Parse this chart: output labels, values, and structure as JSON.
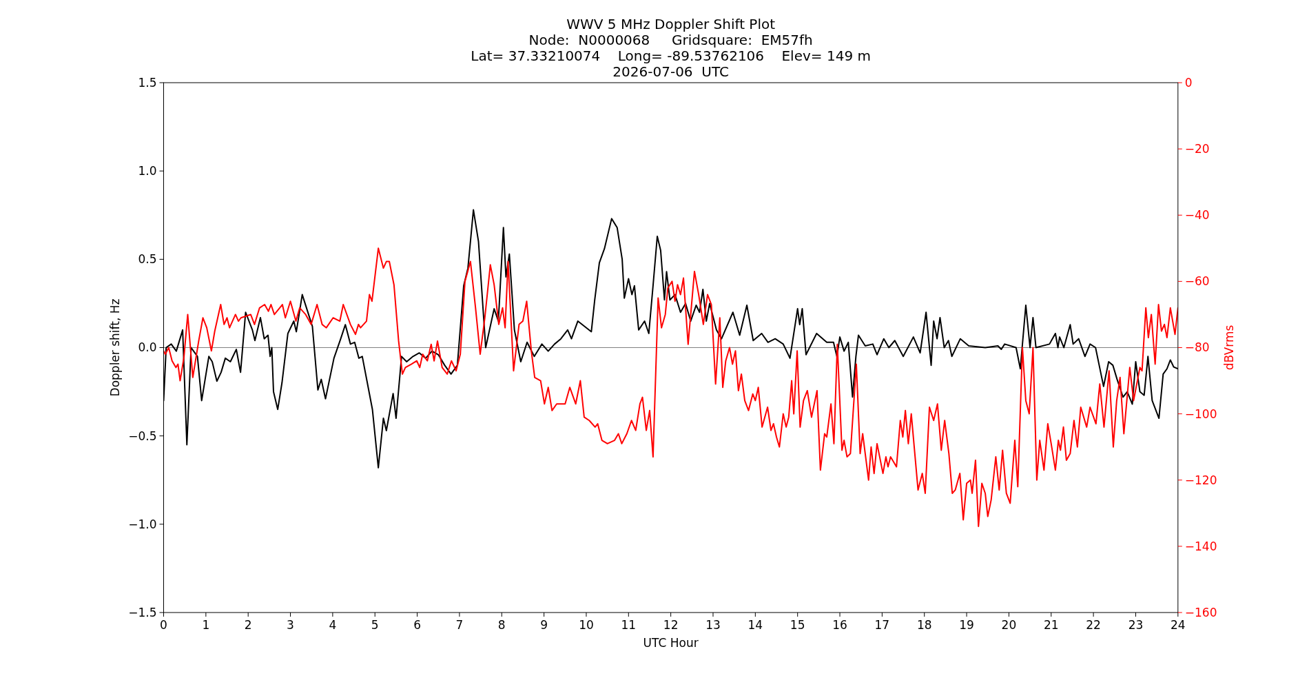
{
  "chart_data": {
    "type": "line",
    "title": "WWV 5 MHz Doppler Shift Plot",
    "subtitle": "Node:  N0000068     Gridsquare:  EM57fh\nLat= 37.33210074    Long= -89.53762106    Elev= 149 m\n2026-07-06  UTC",
    "xlabel": "UTC Hour",
    "ylabel": "Doppler shift, Hz",
    "y2label": "dBVrms",
    "xlim": [
      0,
      24
    ],
    "xticks": [
      0,
      1,
      2,
      3,
      4,
      5,
      6,
      7,
      8,
      9,
      10,
      11,
      12,
      13,
      14,
      15,
      16,
      17,
      18,
      19,
      20,
      21,
      22,
      23,
      24
    ],
    "ylim": [
      -1.5,
      1.5
    ],
    "yticks": [
      {
        "value": -1.5,
        "label": "−1.5"
      },
      {
        "value": -1,
        "label": "−1.0"
      },
      {
        "value": -0.5,
        "label": "−0.5"
      },
      {
        "value": 0,
        "label": "0.0"
      },
      {
        "value": 0.5,
        "label": "0.5"
      },
      {
        "value": 1,
        "label": "1.0"
      },
      {
        "value": 1.5,
        "label": "1.5"
      }
    ],
    "y2lim": [
      -160,
      0
    ],
    "y2ticks": [
      {
        "value": -160,
        "label": "−160"
      },
      {
        "value": -140,
        "label": "−140"
      },
      {
        "value": -120,
        "label": "−120"
      },
      {
        "value": -100,
        "label": "−100"
      },
      {
        "value": -80,
        "label": "−80"
      },
      {
        "value": -60,
        "label": "−60"
      },
      {
        "value": -40,
        "label": "−40"
      },
      {
        "value": -20,
        "label": "−20"
      },
      {
        "value": 0,
        "label": "0"
      }
    ],
    "ref_lines": [
      {
        "axis": "y",
        "value": 0,
        "color": "#808080"
      }
    ],
    "series": [
      {
        "color": "#000000",
        "x": [
          0,
          0.06,
          0.18,
          0.3,
          0.45,
          0.55,
          0.65,
          0.8,
          0.9,
          1.07,
          1.15,
          1.26,
          1.36,
          1.46,
          1.58,
          1.72,
          1.82,
          1.94,
          2.1,
          2.16,
          2.29,
          2.38,
          2.47,
          2.52,
          2.56,
          2.6,
          2.7,
          2.8,
          2.94,
          3.08,
          3.14,
          3.28,
          3.44,
          3.52,
          3.65,
          3.73,
          3.83,
          4.03,
          4.19,
          4.3,
          4.42,
          4.52,
          4.62,
          4.7,
          4.82,
          4.94,
          5.08,
          5.2,
          5.27,
          5.43,
          5.5,
          5.63,
          5.75,
          5.9,
          6.05,
          6.2,
          6.35,
          6.5,
          6.65,
          6.8,
          6.95,
          7.1,
          7.2,
          7.33,
          7.45,
          7.62,
          7.82,
          7.92,
          8.04,
          8.1,
          8.18,
          8.3,
          8.45,
          8.6,
          8.77,
          8.95,
          9.1,
          9.25,
          9.4,
          9.56,
          9.65,
          9.8,
          9.96,
          10.12,
          10.2,
          10.31,
          10.43,
          10.6,
          10.73,
          10.85,
          10.9,
          11.0,
          11.08,
          11.14,
          11.24,
          11.38,
          11.48,
          11.58,
          11.68,
          11.76,
          11.85,
          11.9,
          11.98,
          12.1,
          12.23,
          12.35,
          12.47,
          12.6,
          12.68,
          12.76,
          12.84,
          12.92,
          13.08,
          13.2,
          13.47,
          13.63,
          13.8,
          13.95,
          14.15,
          14.3,
          14.47,
          14.66,
          14.82,
          15.0,
          15.05,
          15.11,
          15.2,
          15.45,
          15.69,
          15.85,
          15.93,
          16.0,
          16.1,
          16.2,
          16.3,
          16.38,
          16.44,
          16.6,
          16.78,
          16.88,
          17.04,
          17.16,
          17.3,
          17.5,
          17.74,
          17.9,
          18.04,
          18.16,
          18.22,
          18.3,
          18.37,
          18.47,
          18.57,
          18.65,
          18.85,
          19.05,
          19.44,
          19.74,
          19.82,
          19.9,
          20.17,
          20.27,
          20.4,
          20.5,
          20.57,
          20.64,
          20.96,
          21.1,
          21.16,
          21.2,
          21.3,
          21.45,
          21.52,
          21.65,
          21.8,
          21.92,
          22.05,
          22.24,
          22.36,
          22.46,
          22.56,
          22.7,
          22.8,
          22.92,
          23.0,
          23.1,
          23.2,
          23.29,
          23.39,
          23.55,
          23.65,
          23.74,
          23.82,
          23.9,
          24
        ],
        "values": [
          -0.3,
          0.0,
          0.02,
          -0.02,
          0.1,
          -0.55,
          0.0,
          -0.05,
          -0.3,
          -0.05,
          -0.08,
          -0.19,
          -0.14,
          -0.06,
          -0.08,
          -0.01,
          -0.14,
          0.2,
          0.1,
          0.04,
          0.17,
          0.05,
          0.07,
          -0.05,
          0.0,
          -0.25,
          -0.35,
          -0.2,
          0.08,
          0.15,
          0.09,
          0.3,
          0.18,
          0.12,
          -0.24,
          -0.18,
          -0.29,
          -0.06,
          0.05,
          0.13,
          0.02,
          0.03,
          -0.06,
          -0.05,
          -0.2,
          -0.35,
          -0.68,
          -0.4,
          -0.47,
          -0.26,
          -0.4,
          -0.05,
          -0.08,
          -0.05,
          -0.03,
          -0.06,
          -0.02,
          -0.04,
          -0.1,
          -0.15,
          -0.1,
          0.35,
          0.45,
          0.78,
          0.6,
          0.0,
          0.22,
          0.15,
          0.68,
          0.4,
          0.53,
          0.1,
          -0.08,
          0.03,
          -0.05,
          0.02,
          -0.02,
          0.02,
          0.05,
          0.1,
          0.05,
          0.15,
          0.12,
          0.09,
          0.27,
          0.48,
          0.56,
          0.73,
          0.68,
          0.5,
          0.28,
          0.39,
          0.3,
          0.35,
          0.1,
          0.15,
          0.08,
          0.35,
          0.63,
          0.55,
          0.27,
          0.43,
          0.27,
          0.3,
          0.2,
          0.25,
          0.15,
          0.24,
          0.2,
          0.33,
          0.15,
          0.25,
          0.1,
          0.05,
          0.2,
          0.07,
          0.24,
          0.04,
          0.08,
          0.03,
          0.05,
          0.02,
          -0.06,
          0.22,
          0.13,
          0.22,
          -0.04,
          0.08,
          0.03,
          0.03,
          -0.05,
          0.06,
          -0.02,
          0.03,
          -0.28,
          -0.05,
          0.07,
          0.01,
          0.02,
          -0.04,
          0.05,
          0.0,
          0.04,
          -0.05,
          0.06,
          -0.03,
          0.2,
          -0.1,
          0.15,
          0.05,
          0.17,
          0.0,
          0.04,
          -0.05,
          0.05,
          0.01,
          0.0,
          0.01,
          -0.01,
          0.02,
          0.0,
          -0.12,
          0.24,
          0.0,
          0.17,
          0.0,
          0.02,
          0.08,
          0.0,
          0.06,
          0.0,
          0.13,
          0.02,
          0.05,
          -0.05,
          0.02,
          0.0,
          -0.22,
          -0.08,
          -0.1,
          -0.18,
          -0.28,
          -0.25,
          -0.32,
          -0.08,
          -0.25,
          -0.27,
          -0.05,
          -0.3,
          -0.4,
          -0.15,
          -0.12,
          -0.07,
          -0.11,
          -0.12
        ]
      },
      {
        "color": "#ff0000",
        "axis": "y2",
        "x": [
          0,
          0.04,
          0.12,
          0.2,
          0.29,
          0.34,
          0.39,
          0.48,
          0.57,
          0.69,
          0.83,
          0.93,
          1.02,
          1.13,
          1.21,
          1.35,
          1.43,
          1.5,
          1.56,
          1.7,
          1.77,
          1.83,
          2.06,
          2.15,
          2.27,
          2.39,
          2.48,
          2.54,
          2.62,
          2.81,
          2.88,
          3.0,
          3.13,
          3.22,
          3.36,
          3.49,
          3.63,
          3.75,
          3.85,
          4.01,
          4.17,
          4.25,
          4.42,
          4.54,
          4.61,
          4.66,
          4.8,
          4.87,
          4.93,
          5.08,
          5.2,
          5.27,
          5.34,
          5.45,
          5.56,
          5.65,
          5.72,
          5.86,
          5.99,
          6.06,
          6.13,
          6.24,
          6.33,
          6.4,
          6.48,
          6.59,
          6.71,
          6.81,
          6.92,
          7.02,
          7.13,
          7.26,
          7.38,
          7.49,
          7.6,
          7.73,
          7.82,
          7.93,
          8.02,
          8.08,
          8.15,
          8.28,
          8.41,
          8.5,
          8.59,
          8.7,
          8.78,
          8.92,
          9.01,
          9.1,
          9.19,
          9.3,
          9.4,
          9.5,
          9.61,
          9.75,
          9.86,
          9.95,
          10.07,
          10.21,
          10.27,
          10.37,
          10.5,
          10.67,
          10.76,
          10.84,
          10.96,
          11.07,
          11.17,
          11.27,
          11.33,
          11.42,
          11.5,
          11.58,
          11.7,
          11.78,
          11.87,
          11.93,
          12.03,
          12.1,
          12.16,
          12.23,
          12.3,
          12.41,
          12.56,
          12.66,
          12.77,
          12.87,
          12.96,
          13.06,
          13.16,
          13.23,
          13.3,
          13.39,
          13.46,
          13.53,
          13.6,
          13.67,
          13.75,
          13.84,
          13.94,
          14.0,
          14.07,
          14.16,
          14.29,
          14.37,
          14.43,
          14.5,
          14.57,
          14.66,
          14.73,
          14.79,
          14.86,
          14.91,
          14.99,
          15.06,
          15.14,
          15.23,
          15.33,
          15.46,
          15.54,
          15.64,
          15.69,
          15.79,
          15.86,
          15.94,
          16.05,
          16.1,
          16.17,
          16.25,
          16.39,
          16.48,
          16.54,
          16.68,
          16.74,
          16.81,
          16.88,
          17.02,
          17.09,
          17.14,
          17.2,
          17.34,
          17.43,
          17.49,
          17.55,
          17.62,
          17.69,
          17.85,
          17.95,
          18.02,
          18.12,
          18.22,
          18.31,
          18.4,
          18.48,
          18.58,
          18.66,
          18.73,
          18.84,
          18.92,
          19.0,
          19.09,
          19.13,
          19.21,
          19.28,
          19.36,
          19.44,
          19.5,
          19.58,
          19.69,
          19.77,
          19.85,
          19.94,
          20.03,
          20.14,
          20.21,
          20.32,
          20.4,
          20.48,
          20.57,
          20.66,
          20.73,
          20.83,
          20.92,
          21.0,
          21.1,
          21.17,
          21.22,
          21.29,
          21.36,
          21.45,
          21.54,
          21.62,
          21.7,
          21.84,
          21.92,
          22.06,
          22.15,
          22.25,
          22.37,
          22.47,
          22.55,
          22.63,
          22.72,
          22.86,
          22.95,
          23.1,
          23.15,
          23.24,
          23.3,
          23.37,
          23.46,
          23.54,
          23.61,
          23.68,
          23.74,
          23.82,
          23.93,
          24
        ],
        "values": [
          -81,
          -82,
          -80,
          -84,
          -86,
          -85,
          -90,
          -83,
          -70,
          -89,
          -78,
          -71,
          -74,
          -81,
          -75,
          -67,
          -73,
          -71,
          -74,
          -70,
          -72,
          -71,
          -70,
          -73,
          -68,
          -67,
          -69,
          -67,
          -70,
          -67,
          -71,
          -66,
          -72,
          -68,
          -70,
          -73,
          -67,
          -73,
          -74,
          -71,
          -72,
          -67,
          -73,
          -76,
          -73,
          -74,
          -72,
          -64,
          -66,
          -50,
          -56,
          -54,
          -54,
          -61,
          -78,
          -88,
          -86,
          -85,
          -84,
          -86,
          -82,
          -84,
          -79,
          -84,
          -78,
          -86,
          -88,
          -84,
          -87,
          -82,
          -60,
          -54,
          -68,
          -82,
          -71,
          -55,
          -61,
          -73,
          -68,
          -74,
          -54,
          -87,
          -73,
          -72,
          -66,
          -81,
          -89,
          -90,
          -97,
          -92,
          -99,
          -97,
          -97,
          -97,
          -92,
          -97,
          -90,
          -101,
          -102,
          -104,
          -103,
          -108,
          -109,
          -108,
          -106,
          -109,
          -106,
          -102,
          -105,
          -97,
          -95,
          -105,
          -99,
          -113,
          -65,
          -74,
          -70,
          -62,
          -60,
          -66,
          -61,
          -64,
          -59,
          -79,
          -57,
          -64,
          -73,
          -64,
          -67,
          -91,
          -71,
          -92,
          -84,
          -80,
          -85,
          -81,
          -93,
          -88,
          -96,
          -99,
          -94,
          -96,
          -92,
          -104,
          -98,
          -105,
          -103,
          -107,
          -110,
          -100,
          -104,
          -101,
          -90,
          -100,
          -81,
          -104,
          -96,
          -93,
          -101,
          -93,
          -117,
          -106,
          -107,
          -97,
          -109,
          -79,
          -111,
          -108,
          -113,
          -112,
          -85,
          -112,
          -106,
          -120,
          -110,
          -118,
          -109,
          -118,
          -113,
          -116,
          -113,
          -116,
          -102,
          -107,
          -99,
          -109,
          -100,
          -123,
          -118,
          -124,
          -98,
          -102,
          -97,
          -111,
          -102,
          -112,
          -124,
          -123,
          -118,
          -132,
          -121,
          -120,
          -124,
          -114,
          -134,
          -121,
          -124,
          -131,
          -126,
          -113,
          -123,
          -111,
          -124,
          -127,
          -108,
          -122,
          -80,
          -96,
          -100,
          -80,
          -120,
          -108,
          -117,
          -103,
          -109,
          -117,
          -108,
          -111,
          -104,
          -114,
          -112,
          -102,
          -110,
          -98,
          -104,
          -98,
          -103,
          -91,
          -104,
          -87,
          -110,
          -96,
          -89,
          -106,
          -86,
          -96,
          -86,
          -87,
          -68,
          -77,
          -70,
          -85,
          -67,
          -75,
          -73,
          -77,
          -68,
          -76,
          -68
        ]
      }
    ]
  }
}
